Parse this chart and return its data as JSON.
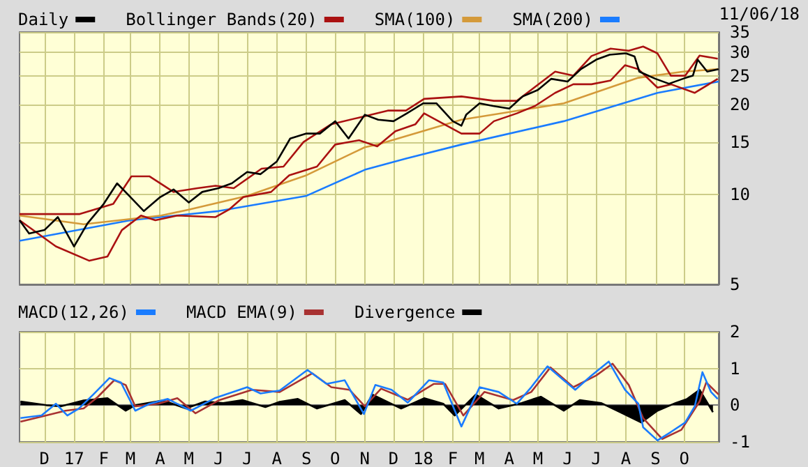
{
  "chart_data": [
    {
      "type": "line",
      "annotations": [
        "11/06/18"
      ],
      "log": "y",
      "grid": true,
      "legend": "top left",
      "tick_labels": "y",
      "xlim": [
        "2016-11-05",
        "2018-11-06"
      ],
      "xticks": [
        {
          "value": "2016-12-01",
          "label": null
        },
        {
          "value": "2017-01-01",
          "label": null
        },
        {
          "value": "2017-02-01",
          "label": null
        },
        {
          "value": "2017-03-01",
          "label": null
        },
        {
          "value": "2017-04-01",
          "label": null
        },
        {
          "value": "2017-05-01",
          "label": null
        },
        {
          "value": "2017-06-01",
          "label": null
        },
        {
          "value": "2017-07-01",
          "label": null
        },
        {
          "value": "2017-08-01",
          "label": null
        },
        {
          "value": "2017-09-01",
          "label": null
        },
        {
          "value": "2017-10-01",
          "label": null
        },
        {
          "value": "2017-11-01",
          "label": null
        },
        {
          "value": "2017-12-01",
          "label": null
        },
        {
          "value": "2018-01-01",
          "label": null
        },
        {
          "value": "2018-02-01",
          "label": null
        },
        {
          "value": "2018-03-01",
          "label": null
        },
        {
          "value": "2018-04-01",
          "label": null
        },
        {
          "value": "2018-05-01",
          "label": null
        },
        {
          "value": "2018-06-01",
          "label": null
        },
        {
          "value": "2018-07-01",
          "label": null
        },
        {
          "value": "2018-08-01",
          "label": null
        },
        {
          "value": "2018-09-01",
          "label": null
        },
        {
          "value": "2018-10-01",
          "label": null
        }
      ],
      "ylim": [
        5,
        35
      ],
      "yticks": [
        5,
        10,
        15,
        20,
        25,
        30,
        35
      ],
      "series": [
        {
          "name": "Daily",
          "color": "#000000",
          "x": [
            "2016-11-05",
            "2016-11-15",
            "2016-12-01",
            "2016-12-15",
            "2017-01-01",
            "2017-01-15",
            "2017-02-01",
            "2017-02-15",
            "2017-03-01",
            "2017-03-15",
            "2017-04-01",
            "2017-04-15",
            "2017-05-01",
            "2017-05-15",
            "2017-06-01",
            "2017-06-15",
            "2017-07-01",
            "2017-07-15",
            "2017-08-01",
            "2017-08-15",
            "2017-09-01",
            "2017-09-15",
            "2017-10-01",
            "2017-10-15",
            "2017-11-01",
            "2017-11-15",
            "2017-12-01",
            "2017-12-15",
            "2018-01-01",
            "2018-01-15",
            "2018-02-01",
            "2018-02-10",
            "2018-02-15",
            "2018-03-01",
            "2018-03-15",
            "2018-04-01",
            "2018-04-15",
            "2018-05-01",
            "2018-05-15",
            "2018-06-01",
            "2018-06-15",
            "2018-07-01",
            "2018-07-15",
            "2018-08-01",
            "2018-08-10",
            "2018-08-15",
            "2018-09-01",
            "2018-09-15",
            "2018-10-01",
            "2018-10-10",
            "2018-10-15",
            "2018-10-25",
            "2018-11-06"
          ],
          "values": [
            8.2,
            7.4,
            7.6,
            8.4,
            6.7,
            8.0,
            9.3,
            10.9,
            9.8,
            8.8,
            9.8,
            10.4,
            9.4,
            10.2,
            10.5,
            10.9,
            11.9,
            11.7,
            12.9,
            15.4,
            16.0,
            16.0,
            17.6,
            15.4,
            18.5,
            17.8,
            17.6,
            18.7,
            20.2,
            20.2,
            17.6,
            17.0,
            18.5,
            20.2,
            19.8,
            19.4,
            21.3,
            22.4,
            24.4,
            23.9,
            26.3,
            28.3,
            29.4,
            29.7,
            29.0,
            25.8,
            24.4,
            23.5,
            24.5,
            25.0,
            28.3,
            25.8,
            26.3
          ]
        },
        {
          "name": "Bollinger Bands(20)",
          "color": "#aa1111",
          "x": [
            "2016-11-05",
            "2017-01-07",
            "2017-02-11",
            "2017-03-02",
            "2017-03-21",
            "2017-04-15",
            "2017-05-10",
            "2017-05-29",
            "2017-06-17",
            "2017-07-16",
            "2017-08-08",
            "2017-08-29",
            "2017-09-27",
            "2017-10-26",
            "2017-11-25",
            "2017-12-14",
            "2018-01-02",
            "2018-02-10",
            "2018-03-16",
            "2018-04-09",
            "2018-05-19",
            "2018-06-07",
            "2018-06-26",
            "2018-07-16",
            "2018-08-04",
            "2018-08-19",
            "2018-09-03",
            "2018-09-17",
            "2018-10-02",
            "2018-10-17",
            "2018-11-05"
          ],
          "values": [
            8.6,
            8.6,
            9.3,
            11.5,
            11.5,
            10.2,
            10.5,
            10.7,
            10.5,
            12.2,
            12.4,
            15.0,
            17.2,
            18.1,
            19.1,
            19.1,
            20.9,
            21.3,
            20.6,
            20.6,
            25.8,
            25.0,
            29.1,
            30.8,
            30.3,
            31.3,
            29.7,
            25.0,
            25.0,
            29.2,
            28.5
          ]
        },
        {
          "color": "#aa1111",
          "x": [
            "2016-11-05",
            "2016-12-13",
            "2017-01-17",
            "2017-02-05",
            "2017-02-20",
            "2017-03-12",
            "2017-03-27",
            "2017-04-19",
            "2017-05-29",
            "2017-06-12",
            "2017-06-27",
            "2017-07-26",
            "2017-08-14",
            "2017-09-12",
            "2017-10-01",
            "2017-10-26",
            "2017-11-14",
            "2017-12-03",
            "2017-12-24",
            "2018-01-02",
            "2018-02-10",
            "2018-03-01",
            "2018-03-16",
            "2018-04-09",
            "2018-04-28",
            "2018-05-19",
            "2018-06-07",
            "2018-06-26",
            "2018-07-16",
            "2018-07-31",
            "2018-08-14",
            "2018-09-03",
            "2018-09-17",
            "2018-10-12",
            "2018-11-05"
          ],
          "values": [
            8.2,
            6.7,
            6.0,
            6.2,
            7.6,
            8.5,
            8.2,
            8.5,
            8.4,
            8.9,
            9.8,
            10.2,
            11.6,
            12.4,
            14.7,
            15.2,
            14.5,
            16.3,
            17.2,
            18.7,
            16.0,
            16.0,
            17.6,
            18.7,
            19.8,
            21.9,
            23.4,
            23.4,
            24.1,
            27.1,
            26.3,
            22.8,
            23.4,
            21.9,
            24.4
          ]
        },
        {
          "name": "SMA(100)",
          "color": "#d49a3a",
          "x": [
            "2016-11-05",
            "2017-01-11",
            "2017-04-02",
            "2017-05-01",
            "2017-07-01",
            "2017-09-01",
            "2017-11-01",
            "2017-11-14",
            "2018-02-10",
            "2018-05-28",
            "2018-08-14",
            "2018-09-30",
            "2018-11-06"
          ],
          "values": [
            8.5,
            7.95,
            8.5,
            8.9,
            9.9,
            11.6,
            14.4,
            14.7,
            17.8,
            20.2,
            24.6,
            25.8,
            26.3
          ]
        },
        {
          "name": "SMA(200)",
          "color": "#1a7cff",
          "x": [
            "2016-11-05",
            "2017-03-01",
            "2017-06-01",
            "2017-09-01",
            "2017-11-01",
            "2017-12-14",
            "2018-02-10",
            "2018-05-28",
            "2018-09-03",
            "2018-11-06"
          ],
          "values": [
            7.0,
            8.2,
            8.8,
            9.9,
            12.1,
            13.2,
            14.7,
            17.6,
            21.9,
            23.9
          ]
        }
      ]
    },
    {
      "type": "line",
      "grid": true,
      "legend": "top left",
      "xlim": [
        "2016-11-05",
        "2018-11-06"
      ],
      "xticks": [
        {
          "value": "2016-12-01",
          "label": "D"
        },
        {
          "value": "2017-01-01",
          "label": "17"
        },
        {
          "value": "2017-02-01",
          "label": "F"
        },
        {
          "value": "2017-03-01",
          "label": "M"
        },
        {
          "value": "2017-04-01",
          "label": "A"
        },
        {
          "value": "2017-05-01",
          "label": "M"
        },
        {
          "value": "2017-06-01",
          "label": "J"
        },
        {
          "value": "2017-07-01",
          "label": "J"
        },
        {
          "value": "2017-08-01",
          "label": "A"
        },
        {
          "value": "2017-09-01",
          "label": "S"
        },
        {
          "value": "2017-10-01",
          "label": "O"
        },
        {
          "value": "2017-11-01",
          "label": "N"
        },
        {
          "value": "2017-12-01",
          "label": "D"
        },
        {
          "value": "2018-01-01",
          "label": "18"
        },
        {
          "value": "2018-02-01",
          "label": "F"
        },
        {
          "value": "2018-03-01",
          "label": "M"
        },
        {
          "value": "2018-04-01",
          "label": "A"
        },
        {
          "value": "2018-05-01",
          "label": "M"
        },
        {
          "value": "2018-06-01",
          "label": "J"
        },
        {
          "value": "2018-07-01",
          "label": "J"
        },
        {
          "value": "2018-08-01",
          "label": "A"
        },
        {
          "value": "2018-09-01",
          "label": "S"
        },
        {
          "value": "2018-10-01",
          "label": "O"
        }
      ],
      "ylim": [
        -1,
        2
      ],
      "yticks": [
        -1,
        0,
        1,
        2
      ],
      "series": [
        {
          "name": "MACD(12,26)",
          "color": "#1a7cff",
          "x": [
            "2016-11-06",
            "2016-11-28",
            "2016-12-13",
            "2016-12-25",
            "2017-01-06",
            "2017-01-21",
            "2017-02-07",
            "2017-02-19",
            "2017-03-06",
            "2017-03-21",
            "2017-04-09",
            "2017-05-03",
            "2017-05-28",
            "2017-07-01",
            "2017-07-15",
            "2017-08-04",
            "2017-09-02",
            "2017-09-22",
            "2017-10-11",
            "2017-10-31",
            "2017-11-12",
            "2017-11-29",
            "2017-12-16",
            "2018-01-07",
            "2018-01-22",
            "2018-02-10",
            "2018-03-01",
            "2018-03-21",
            "2018-04-09",
            "2018-04-24",
            "2018-05-11",
            "2018-05-28",
            "2018-06-09",
            "2018-06-26",
            "2018-07-14",
            "2018-07-31",
            "2018-08-14",
            "2018-08-19",
            "2018-09-03",
            "2018-09-17",
            "2018-10-02",
            "2018-10-12",
            "2018-10-20",
            "2018-10-29",
            "2018-11-05"
          ],
          "values": [
            -0.35,
            -0.28,
            0.04,
            -0.28,
            -0.09,
            0.29,
            0.74,
            0.62,
            -0.15,
            0.04,
            0.17,
            -0.15,
            0.19,
            0.49,
            0.32,
            0.4,
            0.96,
            0.58,
            0.68,
            -0.24,
            0.55,
            0.42,
            0.07,
            0.68,
            0.62,
            -0.58,
            0.49,
            0.36,
            0.04,
            0.49,
            1.06,
            0.68,
            0.42,
            0.81,
            1.19,
            0.42,
            0.04,
            -0.6,
            -0.96,
            -0.73,
            -0.47,
            -0.03,
            0.9,
            0.36,
            0.17
          ]
        },
        {
          "name": "MACD EMA(9)",
          "color": "#a83232",
          "x": [
            "2016-11-06",
            "2016-12-03",
            "2016-12-23",
            "2017-01-11",
            "2017-01-26",
            "2017-02-12",
            "2017-02-24",
            "2017-03-06",
            "2017-03-30",
            "2017-04-19",
            "2017-05-08",
            "2017-06-02",
            "2017-07-06",
            "2017-08-04",
            "2017-09-07",
            "2017-09-27",
            "2017-10-16",
            "2017-11-01",
            "2017-11-18",
            "2017-12-16",
            "2018-01-12",
            "2018-01-24",
            "2018-02-12",
            "2018-03-06",
            "2018-04-05",
            "2018-04-24",
            "2018-05-14",
            "2018-06-07",
            "2018-07-01",
            "2018-07-18",
            "2018-08-04",
            "2018-08-19",
            "2018-09-08",
            "2018-09-28",
            "2018-10-17",
            "2018-10-24",
            "2018-11-06"
          ],
          "values": [
            -0.45,
            -0.28,
            -0.15,
            -0.09,
            0.23,
            0.68,
            0.55,
            -0.03,
            0.04,
            0.19,
            -0.22,
            0.14,
            0.42,
            0.36,
            0.87,
            0.49,
            0.42,
            -0.03,
            0.45,
            0.15,
            0.58,
            0.58,
            -0.28,
            0.36,
            0.14,
            0.36,
            1.03,
            0.49,
            0.81,
            1.13,
            0.55,
            -0.35,
            -0.92,
            -0.67,
            0.1,
            0.62,
            0.29
          ]
        },
        {
          "name": "Divergence",
          "type": "area",
          "color": "#000000",
          "x": [
            "2016-11-06",
            "2016-12-03",
            "2016-12-18",
            "2017-01-11",
            "2017-02-05",
            "2017-02-24",
            "2017-03-06",
            "2017-04-04",
            "2017-04-28",
            "2017-05-18",
            "2017-06-06",
            "2017-06-26",
            "2017-07-20",
            "2017-08-04",
            "2017-08-23",
            "2017-09-12",
            "2017-10-11",
            "2017-10-28",
            "2017-11-09",
            "2017-12-09",
            "2018-01-02",
            "2018-01-22",
            "2018-02-03",
            "2018-02-25",
            "2018-03-21",
            "2018-04-14",
            "2018-05-04",
            "2018-05-28",
            "2018-06-14",
            "2018-07-06",
            "2018-07-26",
            "2018-08-17",
            "2018-09-03",
            "2018-09-22",
            "2018-10-04",
            "2018-10-17",
            "2018-10-31"
          ],
          "values": [
            0.1,
            0,
            -0.03,
            0.13,
            0.19,
            -0.15,
            0,
            0.13,
            -0.09,
            0.1,
            0.06,
            0.14,
            -0.05,
            0.09,
            0.17,
            -0.09,
            0.14,
            -0.24,
            0.29,
            -0.09,
            0.19,
            0.04,
            -0.28,
            0.29,
            -0.09,
            0.06,
            0.23,
            -0.15,
            0.14,
            0.06,
            -0.19,
            -0.47,
            -0.15,
            0.06,
            0.17,
            0.42,
            -0.19
          ]
        }
      ]
    }
  ]
}
